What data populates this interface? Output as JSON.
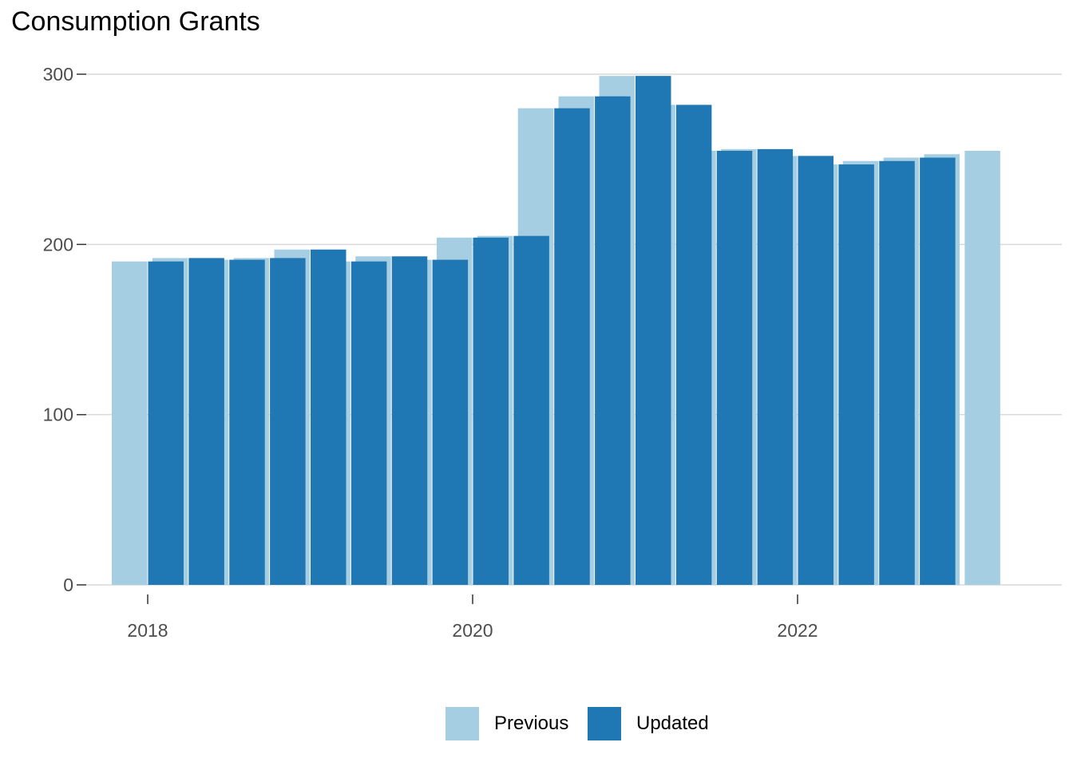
{
  "chart_data": {
    "type": "bar",
    "title": "Consumption Grants",
    "xlabel": "",
    "ylabel": "",
    "ylim": [
      0,
      300
    ],
    "yticks": [
      0,
      100,
      200,
      300
    ],
    "xticks": [
      2018,
      2020,
      2022
    ],
    "grid": true,
    "legend_position": "bottom",
    "x": [
      2018.0,
      2018.25,
      2018.5,
      2018.75,
      2019.0,
      2019.25,
      2019.5,
      2019.75,
      2020.0,
      2020.25,
      2020.5,
      2020.75,
      2021.0,
      2021.25,
      2021.5,
      2021.75,
      2022.0,
      2022.25,
      2022.5,
      2022.75,
      2023.0,
      2023.25
    ],
    "series": [
      {
        "name": "Previous",
        "color": "#a6cee3",
        "values": [
          190,
          192,
          191,
          192,
          197,
          190,
          193,
          191,
          204,
          205,
          280,
          287,
          299,
          282,
          255,
          256,
          252,
          247,
          249,
          251,
          253,
          255
        ]
      },
      {
        "name": "Updated",
        "color": "#1f78b4",
        "values": [
          190,
          192,
          191,
          192,
          197,
          190,
          193,
          191,
          204,
          205,
          280,
          287,
          299,
          282,
          255,
          256,
          252,
          247,
          249,
          251,
          null,
          null
        ]
      }
    ]
  }
}
